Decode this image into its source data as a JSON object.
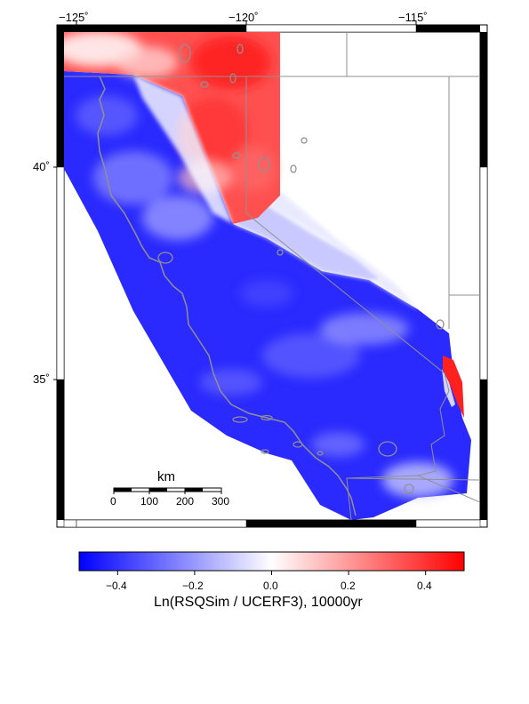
{
  "map": {
    "lon_ticks": [
      "−125˚",
      "−120˚",
      "−115˚"
    ],
    "lat_ticks": [
      "40˚",
      "35˚"
    ],
    "colors": {
      "negative": "#0000ff",
      "neutral": "#ffffff",
      "positive": "#ff0000",
      "border": "#909090"
    }
  },
  "scale_bar": {
    "unit": "km",
    "labels": [
      "0",
      "100",
      "200",
      "300"
    ]
  },
  "colorbar": {
    "range": [
      -0.5,
      0.5
    ],
    "tick_labels": [
      "−0.4",
      "−0.2",
      "0.0",
      "0.2",
      "0.4"
    ],
    "title": "Ln(RSQSim / UCERF3), 10000yr"
  }
}
